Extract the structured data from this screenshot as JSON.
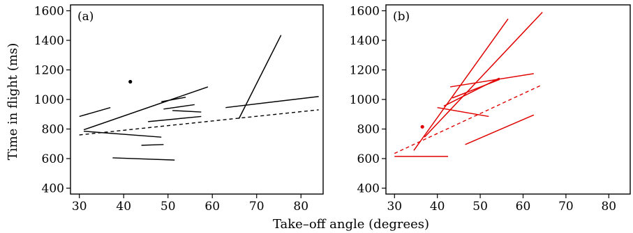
{
  "ylabel": "Time in flight (ms)",
  "xlabel": "Take–off angle (degrees)",
  "chart_data": [
    {
      "type": "line",
      "panel_label": "(a)",
      "color": "#000000",
      "xlim": [
        28,
        85
      ],
      "ylim": [
        360,
        1640
      ],
      "xticks": [
        30,
        40,
        50,
        60,
        70,
        80
      ],
      "yticks": [
        400,
        600,
        800,
        1000,
        1200,
        1400,
        1600
      ],
      "grid": false,
      "segments": [
        {
          "x": [
            30,
            37
          ],
          "y": [
            885,
            945
          ]
        },
        {
          "x": [
            31,
            59
          ],
          "y": [
            795,
            1085
          ]
        },
        {
          "x": [
            31,
            48.5
          ],
          "y": [
            785,
            745
          ]
        },
        {
          "x": [
            37.5,
            51.5
          ],
          "y": [
            605,
            590
          ]
        },
        {
          "x": [
            44,
            49
          ],
          "y": [
            690,
            695
          ]
        },
        {
          "x": [
            45.5,
            57.5
          ],
          "y": [
            850,
            885
          ]
        },
        {
          "x": [
            48.5,
            54
          ],
          "y": [
            985,
            1015
          ]
        },
        {
          "x": [
            49,
            56
          ],
          "y": [
            935,
            965
          ]
        },
        {
          "x": [
            51,
            57.5
          ],
          "y": [
            925,
            915
          ]
        },
        {
          "x": [
            63,
            84
          ],
          "y": [
            945,
            1020
          ]
        },
        {
          "x": [
            66,
            75.5
          ],
          "y": [
            870,
            1435
          ]
        }
      ],
      "mean_line": {
        "style": "dashed",
        "x": [
          30,
          84
        ],
        "y": [
          760,
          930
        ]
      },
      "points": [
        {
          "x": 41.5,
          "y": 1120
        }
      ]
    },
    {
      "type": "line",
      "panel_label": "(b)",
      "color": "#e00000",
      "xlim": [
        28,
        85
      ],
      "ylim": [
        360,
        1640
      ],
      "xticks": [
        30,
        40,
        50,
        60,
        70,
        80
      ],
      "yticks": [
        400,
        600,
        800,
        1000,
        1200,
        1400,
        1600
      ],
      "grid": false,
      "segments": [
        {
          "x": [
            30,
            42.5
          ],
          "y": [
            615,
            615
          ]
        },
        {
          "x": [
            34.5,
            56.5
          ],
          "y": [
            655,
            1545
          ]
        },
        {
          "x": [
            37,
            64.5
          ],
          "y": [
            745,
            1590
          ]
        },
        {
          "x": [
            40,
            52
          ],
          "y": [
            945,
            885
          ]
        },
        {
          "x": [
            41.5,
            54.5
          ],
          "y": [
            955,
            1145
          ]
        },
        {
          "x": [
            43,
            62.5
          ],
          "y": [
            1085,
            1175
          ]
        },
        {
          "x": [
            46.5,
            62.5
          ],
          "y": [
            695,
            895
          ]
        },
        {
          "x": [
            43.5,
            54.5
          ],
          "y": [
            1010,
            1135
          ]
        }
      ],
      "mean_line": {
        "style": "dashed",
        "x": [
          30,
          64.5
        ],
        "y": [
          635,
          1100
        ]
      },
      "points": [
        {
          "x": 36.5,
          "y": 815
        }
      ]
    }
  ]
}
